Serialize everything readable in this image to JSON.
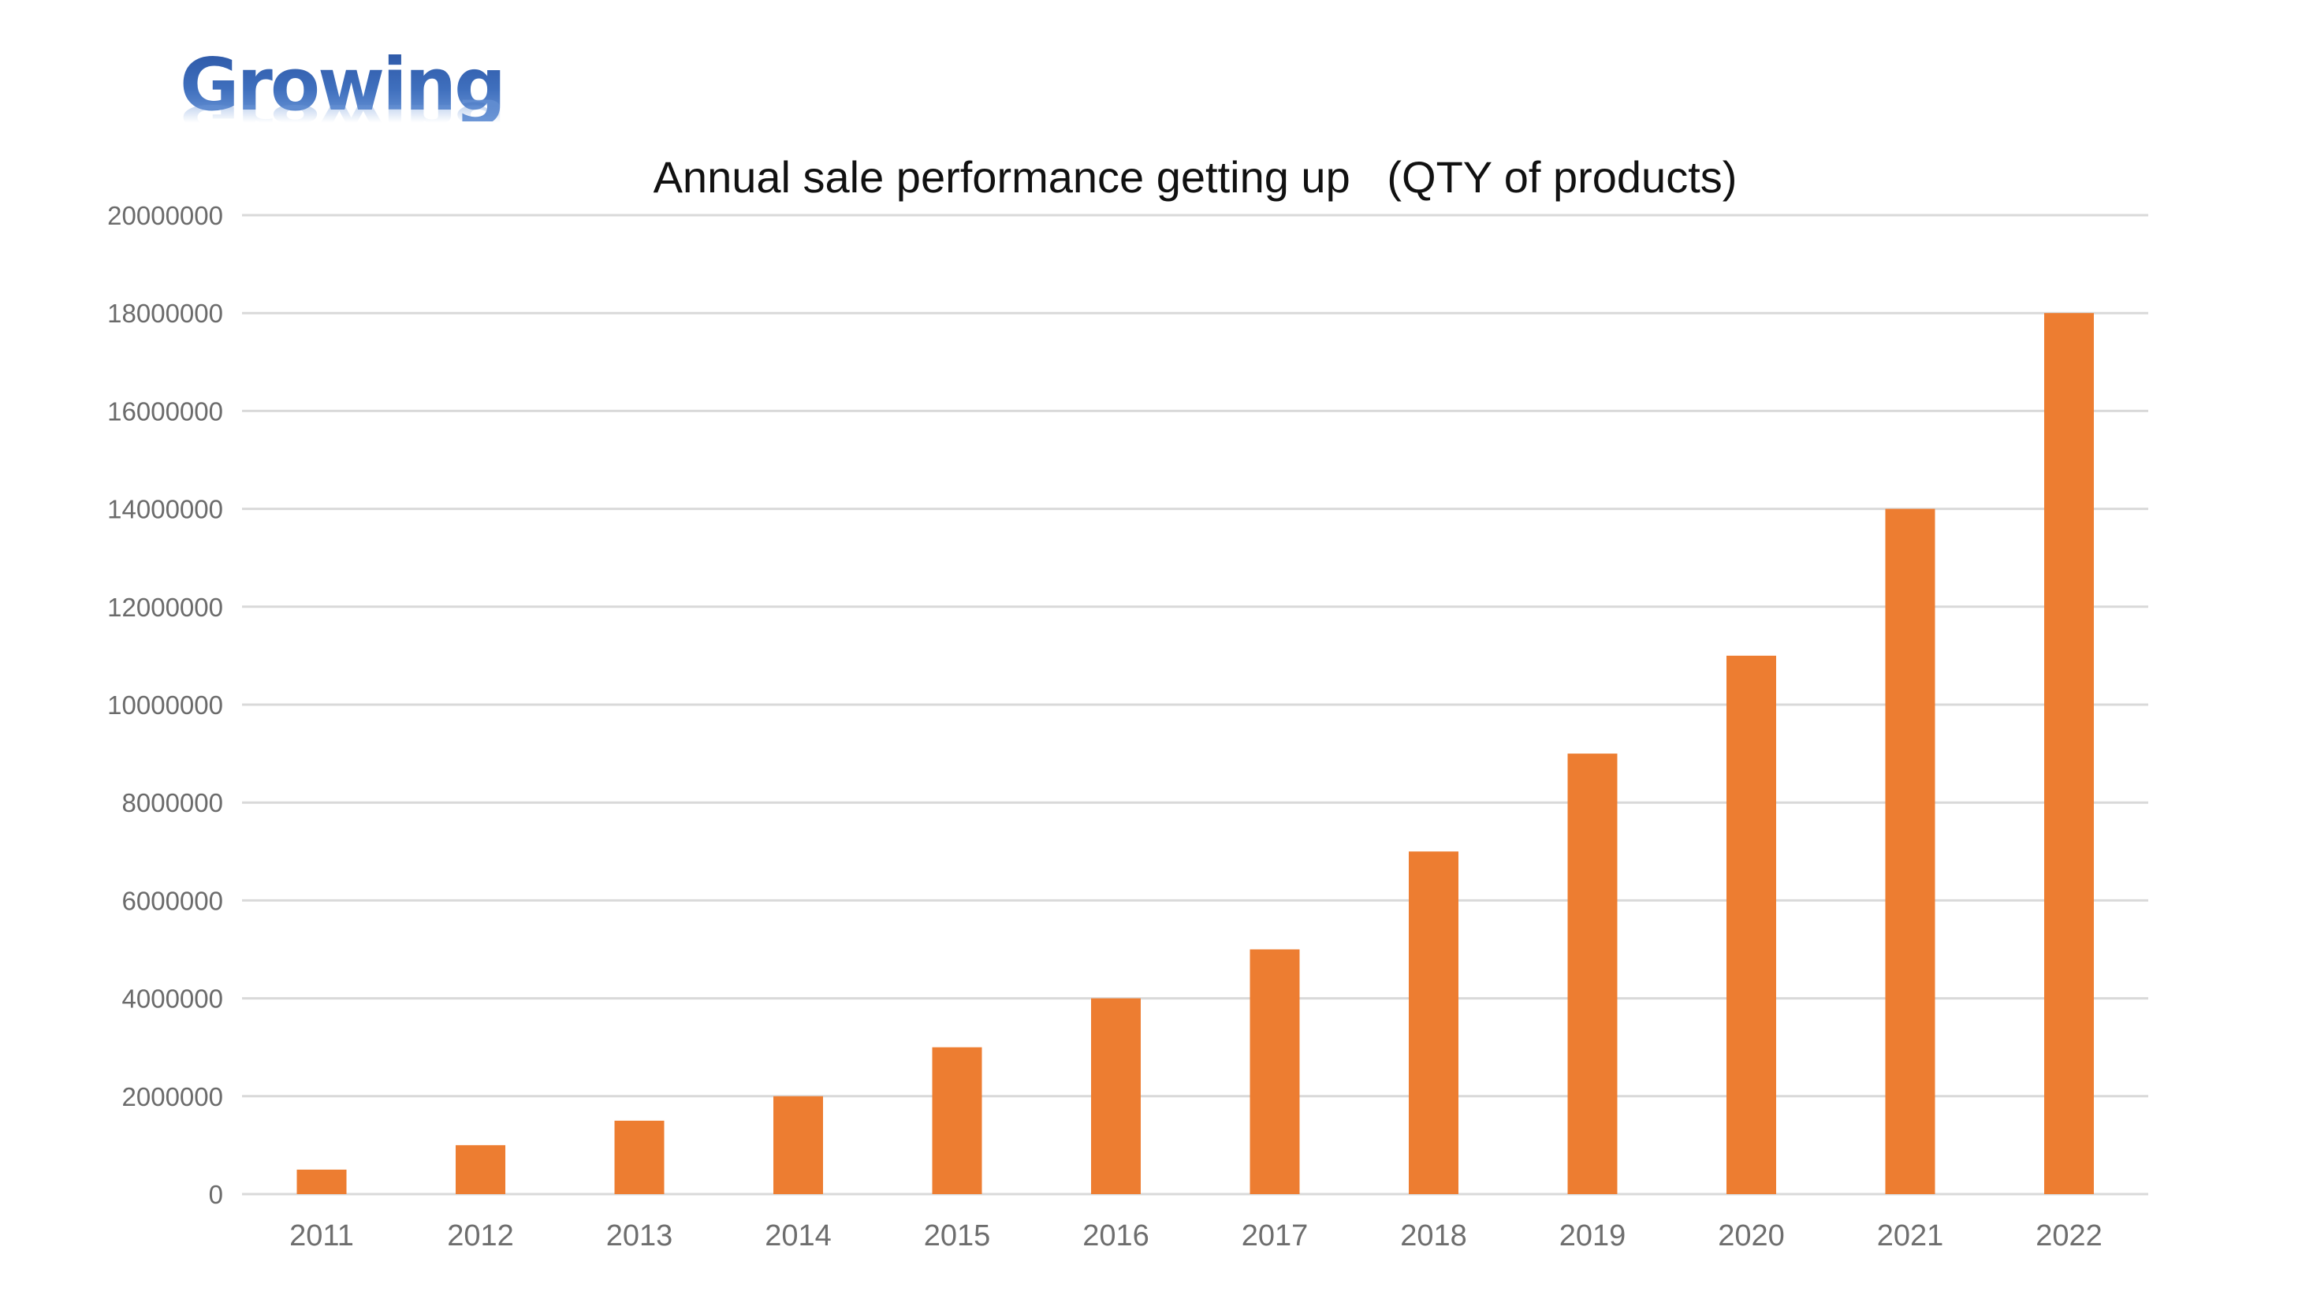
{
  "page": {
    "heading": "Growing"
  },
  "colors": {
    "bar": "#ED7D31",
    "grid": "#D9D9D9",
    "heading_top": "#2C57A6",
    "heading_bottom": "#6E98D8",
    "tick_text": "#6E6E6E",
    "title_text": "#111111"
  },
  "chart_data": {
    "type": "bar",
    "title": "Annual sale performance getting up   (QTY of products)",
    "xlabel": "",
    "ylabel": "",
    "categories": [
      "2011",
      "2012",
      "2013",
      "2014",
      "2015",
      "2016",
      "2017",
      "2018",
      "2019",
      "2020",
      "2021",
      "2022"
    ],
    "values": [
      500000,
      1000000,
      1500000,
      2000000,
      3000000,
      4000000,
      5000000,
      7000000,
      9000000,
      11000000,
      14000000,
      18000000
    ],
    "ylim": [
      0,
      20000000
    ],
    "yticks": [
      0,
      2000000,
      4000000,
      6000000,
      8000000,
      10000000,
      12000000,
      14000000,
      16000000,
      18000000,
      20000000
    ],
    "ytick_labels": [
      "0",
      "2000000",
      "4000000",
      "6000000",
      "8000000",
      "10000000",
      "12000000",
      "14000000",
      "16000000",
      "18000000",
      "20000000"
    ],
    "grid": true,
    "legend": "none"
  }
}
